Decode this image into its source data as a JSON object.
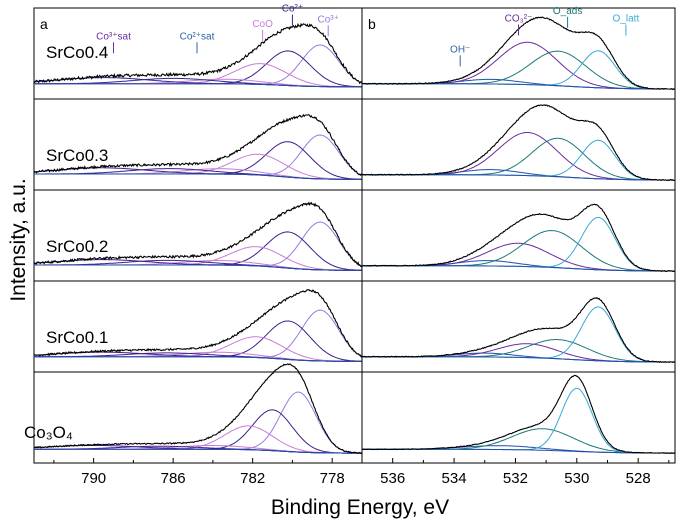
{
  "figure": {
    "ylabel": "Intensity, a.u.",
    "xlabel": "Binding Energy, eV"
  },
  "colors": {
    "envelope": "#000000",
    "co3_or_co2": "#3d1f8c",
    "co2_or_oads": "#1a7a7a",
    "light": "#c77dd6",
    "olatt": "#3aa8d8",
    "baseline": "#1f4fa8",
    "co3_purple": "#6b2aa0",
    "sat_purple": "#6b2aa0",
    "sat_blue": "#2a64a8"
  },
  "chart_data": [
    {
      "type": "line",
      "panel_letter": "a",
      "xlim": [
        793,
        776.5
      ],
      "x_ticks": [
        790,
        786,
        782,
        778
      ],
      "x_tick_labels": [
        "790",
        "786",
        "782",
        "778"
      ],
      "annotations": [
        {
          "text": "Co³⁺sat",
          "x": 789,
          "y": 0.62
        },
        {
          "text": "Co²⁺sat",
          "x": 784.8,
          "y": 0.62
        },
        {
          "text": "CoO",
          "x": 781.5,
          "y": 0.78
        },
        {
          "text": "Co²⁺",
          "x": 780.0,
          "y": 0.98
        },
        {
          "text": "Co³⁺",
          "x": 778.2,
          "y": 0.84
        }
      ],
      "samples": [
        {
          "label": "SrCo0.4",
          "baseline": [
            0.08,
            0.12
          ],
          "envelope_noise": 0.018,
          "peaks": [
            {
              "name": "Co3+",
              "center": 778.6,
              "height": 0.54,
              "width": 0.95,
              "color": "light_blue_purple"
            },
            {
              "name": "Co2+",
              "center": 780.2,
              "height": 0.45,
              "width": 1.1,
              "color": "dark_purple"
            },
            {
              "name": "CoO",
              "center": 781.6,
              "height": 0.27,
              "width": 1.3,
              "color": "light_purple"
            },
            {
              "name": "sat1",
              "center": 783.4,
              "height": 0.06,
              "width": 1.8,
              "color": "light_purple"
            },
            {
              "name": "Co2+sat",
              "center": 786.0,
              "height": 0.07,
              "width": 2.0,
              "color": "dark_purple"
            },
            {
              "name": "Co3+sat",
              "center": 789.5,
              "height": 0.08,
              "width": 2.3,
              "color": "dark_purple"
            }
          ]
        },
        {
          "label": "SrCo0.3",
          "baseline": [
            0.06,
            0.13
          ],
          "envelope_noise": 0.015,
          "peaks": [
            {
              "name": "Co3+",
              "center": 778.6,
              "height": 0.57,
              "width": 0.95,
              "color": "light_blue_purple"
            },
            {
              "name": "Co2+",
              "center": 780.2,
              "height": 0.46,
              "width": 1.1,
              "color": "dark_purple"
            },
            {
              "name": "CoO",
              "center": 781.7,
              "height": 0.27,
              "width": 1.3,
              "color": "light_purple"
            },
            {
              "name": "sat1",
              "center": 783.6,
              "height": 0.07,
              "width": 1.8,
              "color": "light_purple"
            },
            {
              "name": "Co2+sat",
              "center": 786.2,
              "height": 0.07,
              "width": 2.0,
              "color": "dark_purple"
            },
            {
              "name": "Co3+sat",
              "center": 789.6,
              "height": 0.08,
              "width": 2.3,
              "color": "dark_purple"
            }
          ]
        },
        {
          "label": "SrCo0.2",
          "baseline": [
            0.06,
            0.13
          ],
          "envelope_noise": 0.015,
          "peaks": [
            {
              "name": "Co3+",
              "center": 778.6,
              "height": 0.62,
              "width": 0.95,
              "color": "light_blue_purple"
            },
            {
              "name": "Co2+",
              "center": 780.2,
              "height": 0.47,
              "width": 1.1,
              "color": "dark_purple"
            },
            {
              "name": "CoO",
              "center": 781.8,
              "height": 0.25,
              "width": 1.3,
              "color": "light_purple"
            },
            {
              "name": "sat1",
              "center": 783.7,
              "height": 0.06,
              "width": 1.8,
              "color": "light_purple"
            },
            {
              "name": "Co2+sat",
              "center": 786.3,
              "height": 0.06,
              "width": 2.0,
              "color": "dark_purple"
            },
            {
              "name": "Co3+sat",
              "center": 789.6,
              "height": 0.07,
              "width": 2.3,
              "color": "dark_purple"
            }
          ]
        },
        {
          "label": "SrCo0.1",
          "baseline": [
            0.06,
            0.12
          ],
          "envelope_noise": 0.012,
          "peaks": [
            {
              "name": "Co3+",
              "center": 778.6,
              "height": 0.66,
              "width": 0.95,
              "color": "light_blue_purple"
            },
            {
              "name": "Co2+",
              "center": 780.2,
              "height": 0.5,
              "width": 1.1,
              "color": "dark_purple"
            },
            {
              "name": "CoO",
              "center": 781.8,
              "height": 0.27,
              "width": 1.3,
              "color": "light_purple"
            },
            {
              "name": "sat1",
              "center": 783.7,
              "height": 0.06,
              "width": 1.8,
              "color": "light_purple"
            },
            {
              "name": "Co2+sat",
              "center": 786.3,
              "height": 0.05,
              "width": 2.0,
              "color": "dark_purple"
            },
            {
              "name": "Co3+sat",
              "center": 789.6,
              "height": 0.06,
              "width": 2.3,
              "color": "dark_purple"
            }
          ]
        },
        {
          "label": "Co₃O₄",
          "baseline": [
            0.05,
            0.1
          ],
          "envelope_noise": 0.008,
          "peaks": [
            {
              "name": "Co3+",
              "center": 779.7,
              "height": 0.78,
              "width": 0.9,
              "color": "light_blue_purple"
            },
            {
              "name": "Co2+",
              "center": 781.0,
              "height": 0.53,
              "width": 1.0,
              "color": "dark_purple"
            },
            {
              "name": "CoO",
              "center": 782.2,
              "height": 0.31,
              "width": 1.2,
              "color": "light_purple"
            },
            {
              "name": "sat1",
              "center": 784.0,
              "height": 0.05,
              "width": 1.8,
              "color": "light_purple"
            },
            {
              "name": "Co2+sat",
              "center": 786.7,
              "height": 0.04,
              "width": 2.0,
              "color": "dark_purple"
            },
            {
              "name": "Co3+sat",
              "center": 790.0,
              "height": 0.05,
              "width": 2.3,
              "color": "dark_purple"
            }
          ]
        }
      ]
    },
    {
      "type": "line",
      "panel_letter": "b",
      "xlim": [
        537,
        526.8
      ],
      "x_ticks": [
        536,
        534,
        532,
        530,
        528
      ],
      "x_tick_labels": [
        "536",
        "534",
        "532",
        "530",
        "528"
      ],
      "annotations": [
        {
          "text": "OH⁻",
          "x": 533.8,
          "y": 0.45
        },
        {
          "text": "CO₃²⁻",
          "x": 531.9,
          "y": 0.85
        },
        {
          "text": "O_ads",
          "x": 530.3,
          "y": 0.95
        },
        {
          "text": "O_latt",
          "x": 528.4,
          "y": 0.85
        }
      ],
      "samples": [
        {
          "label": "SrCo0.4",
          "baseline": [
            0.05,
            0.12
          ],
          "envelope_noise": 0.006,
          "peaks": [
            {
              "name": "OH-",
              "center": 532.8,
              "height": 0.06,
              "width": 0.9,
              "color": "blue"
            },
            {
              "name": "CO3",
              "center": 531.6,
              "height": 0.55,
              "width": 0.95,
              "color": "purple"
            },
            {
              "name": "Oads",
              "center": 530.6,
              "height": 0.45,
              "width": 0.9,
              "color": "teal"
            },
            {
              "name": "Olatt",
              "center": 529.3,
              "height": 0.48,
              "width": 0.55,
              "color": "light_blue"
            }
          ]
        },
        {
          "label": "SrCo0.3",
          "baseline": [
            0.05,
            0.12
          ],
          "envelope_noise": 0.006,
          "peaks": [
            {
              "name": "OH-",
              "center": 532.8,
              "height": 0.07,
              "width": 0.9,
              "color": "blue"
            },
            {
              "name": "CO3",
              "center": 531.6,
              "height": 0.56,
              "width": 0.95,
              "color": "purple"
            },
            {
              "name": "Oads",
              "center": 530.6,
              "height": 0.5,
              "width": 0.85,
              "color": "teal"
            },
            {
              "name": "Olatt",
              "center": 529.3,
              "height": 0.5,
              "width": 0.55,
              "color": "light_blue"
            }
          ]
        },
        {
          "label": "SrCo0.2",
          "baseline": [
            0.05,
            0.12
          ],
          "envelope_noise": 0.006,
          "peaks": [
            {
              "name": "OH-",
              "center": 532.9,
              "height": 0.07,
              "width": 0.9,
              "color": "blue"
            },
            {
              "name": "CO3",
              "center": 531.9,
              "height": 0.3,
              "width": 1.0,
              "color": "purple"
            },
            {
              "name": "Oads",
              "center": 530.8,
              "height": 0.48,
              "width": 0.95,
              "color": "teal"
            },
            {
              "name": "Olatt",
              "center": 529.3,
              "height": 0.68,
              "width": 0.55,
              "color": "light_blue"
            }
          ]
        },
        {
          "label": "SrCo0.1",
          "baseline": [
            0.05,
            0.12
          ],
          "envelope_noise": 0.006,
          "peaks": [
            {
              "name": "OH-",
              "center": 533.0,
              "height": 0.05,
              "width": 0.9,
              "color": "blue"
            },
            {
              "name": "CO3",
              "center": 531.6,
              "height": 0.18,
              "width": 0.95,
              "color": "purple"
            },
            {
              "name": "Oads",
              "center": 530.6,
              "height": 0.25,
              "width": 0.95,
              "color": "teal"
            },
            {
              "name": "Olatt",
              "center": 529.3,
              "height": 0.7,
              "width": 0.55,
              "color": "light_blue"
            }
          ]
        },
        {
          "label": "Co₃O₄",
          "baseline": [
            0.05,
            0.1
          ],
          "envelope_noise": 0.004,
          "peaks": [
            {
              "name": "OH-",
              "center": 532.5,
              "height": 0.05,
              "width": 1.2,
              "color": "blue"
            },
            {
              "name": "Oads",
              "center": 531.1,
              "height": 0.28,
              "width": 1.0,
              "color": "teal"
            },
            {
              "name": "Olatt",
              "center": 530.0,
              "height": 0.82,
              "width": 0.5,
              "color": "light_blue"
            }
          ]
        }
      ]
    }
  ]
}
